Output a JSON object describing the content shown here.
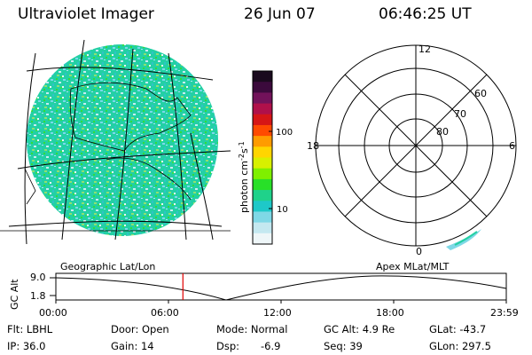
{
  "header": {
    "instrument": "Ultraviolet Imager",
    "date": "26 Jun 07",
    "time": "06:46:25 UT"
  },
  "colorbar": {
    "unit_label": "photon cm",
    "unit_sup1": "-2",
    "unit_s": "s",
    "unit_sup2": "-1",
    "tick_100": "100",
    "tick_10": "10",
    "colors": [
      "#1a0a1e",
      "#3b0a3c",
      "#72125a",
      "#b0104a",
      "#d61616",
      "#ff4a00",
      "#ff9b00",
      "#ffd500",
      "#d8f000",
      "#7ff000",
      "#28e028",
      "#1fd28a",
      "#1ec8c8",
      "#7fd8e6",
      "#c4e8f0",
      "#eef6f8"
    ]
  },
  "polar": {
    "mlt_12": "12",
    "mlt_18": "18",
    "mlt_6": "6",
    "mlt_0": "0",
    "lat_60": "60",
    "lat_70": "70",
    "lat_80": "80"
  },
  "timeline": {
    "left_title": "Geographic Lat/Lon",
    "right_title": "Apex  MLat/MLT",
    "axis_label": "GC Alt",
    "y_max": "9.0",
    "y_min": "1.8",
    "ticks": [
      "00:00",
      "06:00",
      "12:00",
      "18:00",
      "23:59"
    ],
    "current_fraction": 0.282
  },
  "info": {
    "flt": "Flt: LBHL",
    "ip": "IP: 36.0",
    "door": "Door: Open",
    "gain": "Gain: 14",
    "mode": "Mode: Normal",
    "dsp_label": "Dsp:",
    "dsp_value": "-6.9",
    "gcalt": "GC Alt: 4.9 Re",
    "seq": "Seq: 39",
    "glat": "GLat: -43.7",
    "glon": "GLon: 297.5"
  }
}
